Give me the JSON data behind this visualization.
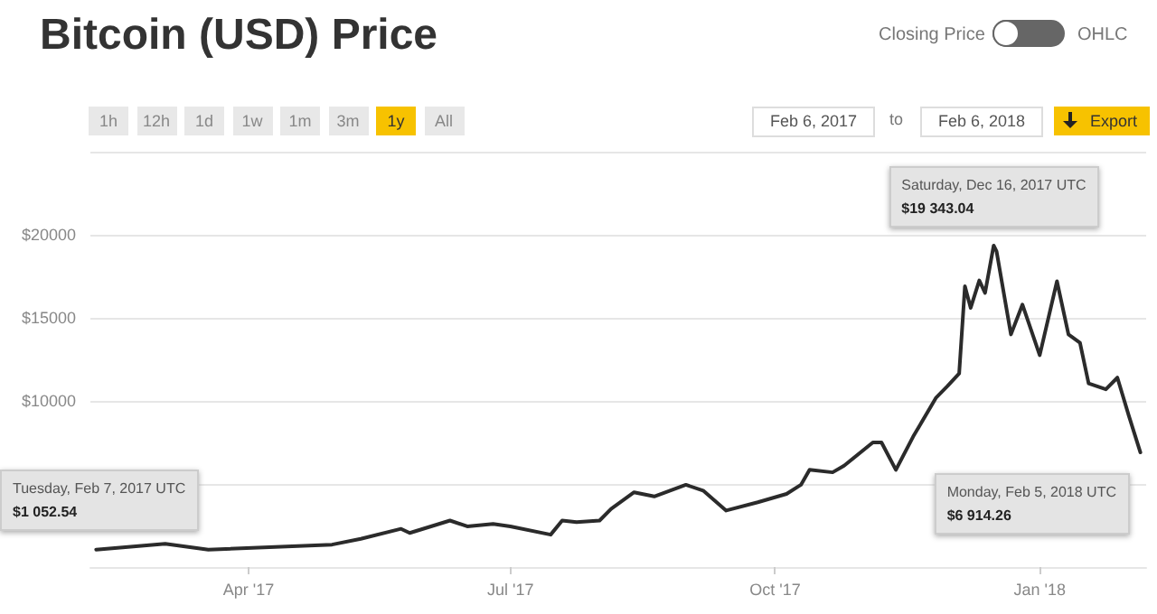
{
  "chart_data": {
    "type": "line",
    "title": "Bitcoin (USD) Price",
    "x": [
      "2017-02-07",
      "2017-03-03",
      "2017-03-18",
      "2017-04-30",
      "2017-05-10",
      "2017-05-24",
      "2017-05-27",
      "2017-06-10",
      "2017-06-16",
      "2017-06-25",
      "2017-07-01",
      "2017-07-15",
      "2017-07-19",
      "2017-07-24",
      "2017-08-01",
      "2017-08-05",
      "2017-08-13",
      "2017-08-20",
      "2017-08-31",
      "2017-09-06",
      "2017-09-14",
      "2017-09-25",
      "2017-10-05",
      "2017-10-10",
      "2017-10-13",
      "2017-10-21",
      "2017-10-25",
      "2017-11-04",
      "2017-11-07",
      "2017-11-12",
      "2017-11-18",
      "2017-11-26",
      "2017-11-30",
      "2017-12-04",
      "2017-12-06",
      "2017-12-08",
      "2017-12-11",
      "2017-12-13",
      "2017-12-16",
      "2017-12-17",
      "2017-12-22",
      "2017-12-26",
      "2018-01-01",
      "2018-01-07",
      "2018-01-11",
      "2018-01-15",
      "2018-01-18",
      "2018-01-24",
      "2018-01-28",
      "2018-02-01",
      "2018-02-05"
    ],
    "series": [
      {
        "color": "#2b2b2b",
        "values": [
          1050,
          1400,
          1050,
          1350,
          1700,
          2300,
          2050,
          2800,
          2450,
          2600,
          2450,
          1950,
          2800,
          2700,
          2800,
          3500,
          4500,
          4250,
          4950,
          4600,
          3400,
          3900,
          4400,
          4950,
          5850,
          5700,
          6100,
          7500,
          7500,
          5850,
          7850,
          10200,
          10900,
          11650,
          16900,
          15600,
          17250,
          16500,
          19350,
          19000,
          14000,
          15800,
          12750,
          17200,
          14000,
          13500,
          11050,
          10700,
          11400,
          9100,
          6900
        ]
      }
    ],
    "xlim": [
      "2017-02-05",
      "2018-02-07"
    ],
    "xticks": [
      {
        "value": "2017-04-01",
        "label": "Apr '17"
      },
      {
        "value": "2017-07-01",
        "label": "Jul '17"
      },
      {
        "value": "2017-10-01",
        "label": "Oct '17"
      },
      {
        "value": "2018-01-01",
        "label": "Jan '18"
      }
    ],
    "ylim": [
      0,
      25000
    ],
    "yticks": [
      {
        "value": 5000,
        "label": null
      },
      {
        "value": 10000,
        "label": "$10000"
      },
      {
        "value": 15000,
        "label": "$15000"
      },
      {
        "value": 20000,
        "label": "$20000"
      },
      {
        "value": 25000,
        "label": null
      }
    ],
    "grid": "y",
    "marker": "none",
    "line_style": "solid",
    "annotations": [
      {
        "text": "Tuesday, Feb 7, 2017 UTC\n$1 052.54",
        "x": "2017-02-07",
        "y": 1052.54
      },
      {
        "text": "Saturday, Dec 16, 2017 UTC\n$19 343.04",
        "x": "2017-12-16",
        "y": 19343.04
      },
      {
        "text": "Monday, Feb 5, 2018 UTC\n$6 914.26",
        "x": "2018-02-05",
        "y": 6914.26
      },
      "Closing Price",
      "OHLC",
      "1h",
      "12h",
      "1d",
      "1w",
      "1m",
      "3m",
      "1y",
      "All",
      "Feb 6, 2017",
      "to",
      "Feb 6, 2018",
      "Export"
    ]
  }
}
